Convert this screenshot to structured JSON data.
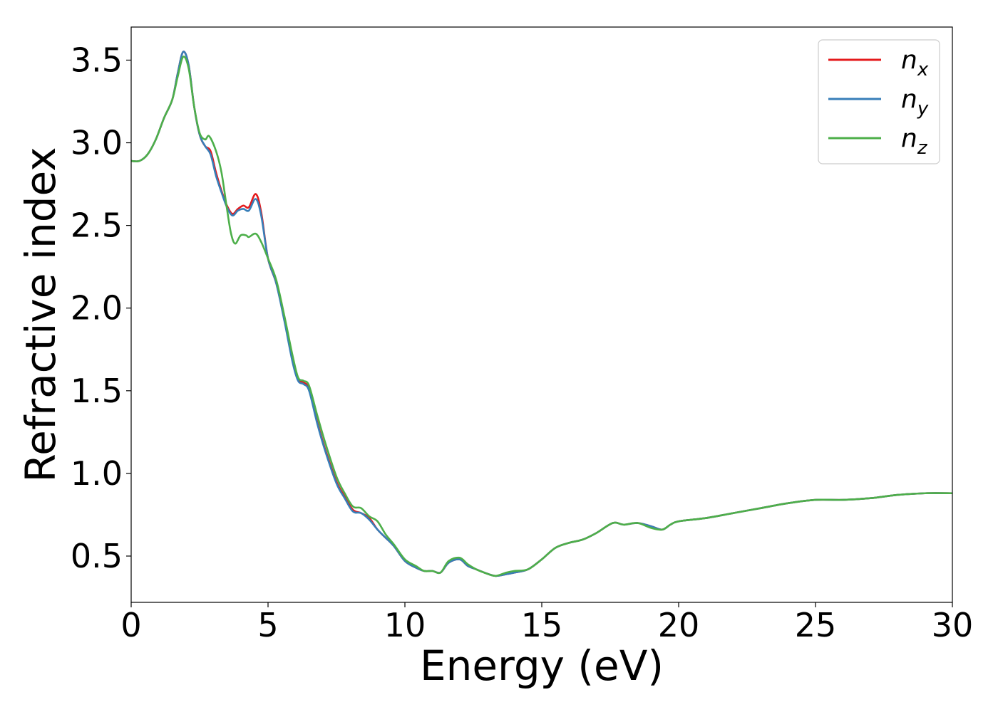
{
  "chart_data": {
    "type": "line",
    "title": "",
    "xlabel": "Energy (eV)",
    "ylabel": "Refractive index",
    "xlim": [
      0,
      30
    ],
    "ylim": [
      0.22,
      3.7
    ],
    "xticks": [
      0,
      5,
      10,
      15,
      20,
      25,
      30
    ],
    "yticks": [
      0.5,
      1.0,
      1.5,
      2.0,
      2.5,
      3.0,
      3.5
    ],
    "xtick_labels": [
      "0",
      "5",
      "10",
      "15",
      "20",
      "25",
      "30"
    ],
    "ytick_labels": [
      "0.5",
      "1.0",
      "1.5",
      "2.0",
      "2.5",
      "3.0",
      "3.5"
    ],
    "grid": false,
    "legend_position": "top-right",
    "series": [
      {
        "name": "n_x",
        "label_base": "n",
        "label_sub": "x",
        "color": "#e41a1c",
        "points": [
          [
            0,
            2.89
          ],
          [
            0.3,
            2.89
          ],
          [
            0.6,
            2.93
          ],
          [
            0.9,
            3.02
          ],
          [
            1.2,
            3.15
          ],
          [
            1.5,
            3.26
          ],
          [
            1.7,
            3.42
          ],
          [
            1.9,
            3.55
          ],
          [
            2.1,
            3.47
          ],
          [
            2.3,
            3.22
          ],
          [
            2.5,
            3.05
          ],
          [
            2.7,
            2.98
          ],
          [
            2.9,
            2.95
          ],
          [
            3.1,
            2.82
          ],
          [
            3.3,
            2.71
          ],
          [
            3.5,
            2.62
          ],
          [
            3.7,
            2.57
          ],
          [
            3.9,
            2.6
          ],
          [
            4.1,
            2.62
          ],
          [
            4.3,
            2.61
          ],
          [
            4.55,
            2.69
          ],
          [
            4.75,
            2.58
          ],
          [
            5.0,
            2.3
          ],
          [
            5.3,
            2.15
          ],
          [
            5.6,
            1.93
          ],
          [
            5.9,
            1.68
          ],
          [
            6.1,
            1.57
          ],
          [
            6.3,
            1.55
          ],
          [
            6.5,
            1.51
          ],
          [
            6.8,
            1.31
          ],
          [
            7.1,
            1.14
          ],
          [
            7.5,
            0.95
          ],
          [
            7.8,
            0.86
          ],
          [
            8.1,
            0.78
          ],
          [
            8.4,
            0.76
          ],
          [
            8.7,
            0.73
          ],
          [
            9.0,
            0.66
          ],
          [
            9.3,
            0.61
          ],
          [
            9.6,
            0.56
          ],
          [
            10.0,
            0.47
          ],
          [
            10.4,
            0.43
          ],
          [
            10.7,
            0.41
          ],
          [
            11.0,
            0.41
          ],
          [
            11.3,
            0.4
          ],
          [
            11.6,
            0.46
          ],
          [
            12.0,
            0.48
          ],
          [
            12.3,
            0.44
          ],
          [
            12.6,
            0.42
          ],
          [
            12.9,
            0.4
          ],
          [
            13.3,
            0.38
          ],
          [
            13.7,
            0.39
          ],
          [
            14.0,
            0.4
          ],
          [
            14.5,
            0.42
          ],
          [
            15.0,
            0.48
          ],
          [
            15.5,
            0.55
          ],
          [
            16.0,
            0.58
          ],
          [
            16.5,
            0.6
          ],
          [
            17.0,
            0.64
          ],
          [
            17.6,
            0.7
          ],
          [
            18.0,
            0.69
          ],
          [
            18.5,
            0.7
          ],
          [
            19.0,
            0.68
          ],
          [
            19.4,
            0.66
          ],
          [
            19.7,
            0.69
          ],
          [
            20.0,
            0.71
          ],
          [
            21.0,
            0.73
          ],
          [
            22.0,
            0.76
          ],
          [
            23.0,
            0.79
          ],
          [
            24.0,
            0.82
          ],
          [
            25.0,
            0.84
          ],
          [
            26.0,
            0.84
          ],
          [
            27.0,
            0.85
          ],
          [
            28.0,
            0.87
          ],
          [
            29.0,
            0.88
          ],
          [
            30.0,
            0.88
          ]
        ]
      },
      {
        "name": "n_y",
        "label_base": "n",
        "label_sub": "y",
        "color": "#377eb8",
        "points": [
          [
            0,
            2.89
          ],
          [
            0.3,
            2.89
          ],
          [
            0.6,
            2.93
          ],
          [
            0.9,
            3.02
          ],
          [
            1.2,
            3.15
          ],
          [
            1.5,
            3.26
          ],
          [
            1.7,
            3.42
          ],
          [
            1.9,
            3.55
          ],
          [
            2.1,
            3.47
          ],
          [
            2.3,
            3.22
          ],
          [
            2.5,
            3.05
          ],
          [
            2.7,
            2.98
          ],
          [
            2.9,
            2.93
          ],
          [
            3.1,
            2.8
          ],
          [
            3.3,
            2.7
          ],
          [
            3.5,
            2.61
          ],
          [
            3.7,
            2.56
          ],
          [
            3.9,
            2.59
          ],
          [
            4.1,
            2.6
          ],
          [
            4.3,
            2.59
          ],
          [
            4.55,
            2.66
          ],
          [
            4.75,
            2.56
          ],
          [
            5.0,
            2.3
          ],
          [
            5.3,
            2.15
          ],
          [
            5.6,
            1.92
          ],
          [
            5.9,
            1.67
          ],
          [
            6.1,
            1.56
          ],
          [
            6.3,
            1.54
          ],
          [
            6.5,
            1.5
          ],
          [
            6.8,
            1.3
          ],
          [
            7.1,
            1.13
          ],
          [
            7.5,
            0.94
          ],
          [
            7.8,
            0.85
          ],
          [
            8.1,
            0.77
          ],
          [
            8.4,
            0.76
          ],
          [
            8.7,
            0.72
          ],
          [
            9.0,
            0.66
          ],
          [
            9.3,
            0.61
          ],
          [
            9.6,
            0.56
          ],
          [
            10.0,
            0.47
          ],
          [
            10.4,
            0.43
          ],
          [
            10.7,
            0.41
          ],
          [
            11.0,
            0.41
          ],
          [
            11.3,
            0.4
          ],
          [
            11.6,
            0.46
          ],
          [
            12.0,
            0.48
          ],
          [
            12.3,
            0.44
          ],
          [
            12.6,
            0.42
          ],
          [
            12.9,
            0.4
          ],
          [
            13.3,
            0.38
          ],
          [
            13.7,
            0.39
          ],
          [
            14.0,
            0.4
          ],
          [
            14.5,
            0.42
          ],
          [
            15.0,
            0.48
          ],
          [
            15.5,
            0.55
          ],
          [
            16.0,
            0.58
          ],
          [
            16.5,
            0.6
          ],
          [
            17.0,
            0.64
          ],
          [
            17.6,
            0.7
          ],
          [
            18.0,
            0.69
          ],
          [
            18.5,
            0.7
          ],
          [
            19.0,
            0.68
          ],
          [
            19.4,
            0.66
          ],
          [
            19.7,
            0.69
          ],
          [
            20.0,
            0.71
          ],
          [
            21.0,
            0.73
          ],
          [
            22.0,
            0.76
          ],
          [
            23.0,
            0.79
          ],
          [
            24.0,
            0.82
          ],
          [
            25.0,
            0.84
          ],
          [
            26.0,
            0.84
          ],
          [
            27.0,
            0.85
          ],
          [
            28.0,
            0.87
          ],
          [
            29.0,
            0.88
          ],
          [
            30.0,
            0.88
          ]
        ]
      },
      {
        "name": "n_z",
        "label_base": "n",
        "label_sub": "z",
        "color": "#4daf4a",
        "points": [
          [
            0,
            2.89
          ],
          [
            0.3,
            2.89
          ],
          [
            0.6,
            2.93
          ],
          [
            0.9,
            3.02
          ],
          [
            1.2,
            3.15
          ],
          [
            1.5,
            3.26
          ],
          [
            1.7,
            3.4
          ],
          [
            1.9,
            3.52
          ],
          [
            2.1,
            3.45
          ],
          [
            2.3,
            3.22
          ],
          [
            2.5,
            3.06
          ],
          [
            2.7,
            3.02
          ],
          [
            2.85,
            3.04
          ],
          [
            3.1,
            2.95
          ],
          [
            3.3,
            2.82
          ],
          [
            3.5,
            2.6
          ],
          [
            3.65,
            2.45
          ],
          [
            3.8,
            2.39
          ],
          [
            4.0,
            2.44
          ],
          [
            4.2,
            2.44
          ],
          [
            4.3,
            2.43
          ],
          [
            4.55,
            2.45
          ],
          [
            4.75,
            2.4
          ],
          [
            5.0,
            2.3
          ],
          [
            5.3,
            2.17
          ],
          [
            5.6,
            1.95
          ],
          [
            5.9,
            1.71
          ],
          [
            6.1,
            1.58
          ],
          [
            6.3,
            1.56
          ],
          [
            6.5,
            1.53
          ],
          [
            6.8,
            1.35
          ],
          [
            7.1,
            1.18
          ],
          [
            7.5,
            0.98
          ],
          [
            7.8,
            0.88
          ],
          [
            8.1,
            0.8
          ],
          [
            8.4,
            0.79
          ],
          [
            8.7,
            0.74
          ],
          [
            9.0,
            0.71
          ],
          [
            9.3,
            0.63
          ],
          [
            9.6,
            0.57
          ],
          [
            10.0,
            0.48
          ],
          [
            10.4,
            0.44
          ],
          [
            10.7,
            0.41
          ],
          [
            11.0,
            0.41
          ],
          [
            11.3,
            0.4
          ],
          [
            11.6,
            0.47
          ],
          [
            12.0,
            0.49
          ],
          [
            12.3,
            0.45
          ],
          [
            12.6,
            0.42
          ],
          [
            12.9,
            0.4
          ],
          [
            13.3,
            0.38
          ],
          [
            13.7,
            0.4
          ],
          [
            14.0,
            0.41
          ],
          [
            14.5,
            0.42
          ],
          [
            15.0,
            0.48
          ],
          [
            15.5,
            0.55
          ],
          [
            16.0,
            0.58
          ],
          [
            16.5,
            0.6
          ],
          [
            17.0,
            0.64
          ],
          [
            17.6,
            0.7
          ],
          [
            18.0,
            0.69
          ],
          [
            18.5,
            0.7
          ],
          [
            19.0,
            0.67
          ],
          [
            19.4,
            0.66
          ],
          [
            19.7,
            0.69
          ],
          [
            20.0,
            0.71
          ],
          [
            21.0,
            0.73
          ],
          [
            22.0,
            0.76
          ],
          [
            23.0,
            0.79
          ],
          [
            24.0,
            0.82
          ],
          [
            25.0,
            0.84
          ],
          [
            26.0,
            0.84
          ],
          [
            27.0,
            0.85
          ],
          [
            28.0,
            0.87
          ],
          [
            29.0,
            0.88
          ],
          [
            30.0,
            0.88
          ]
        ]
      }
    ]
  }
}
